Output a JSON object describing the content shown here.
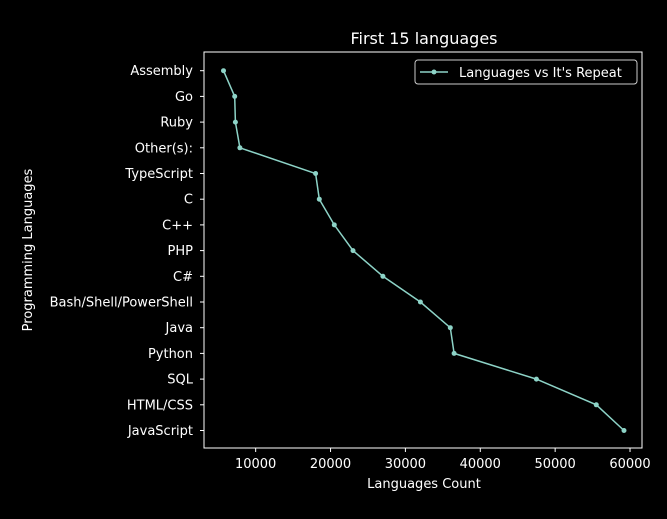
{
  "chart_data": {
    "type": "line",
    "title": "First 15 languages",
    "xlabel": "Languages Count",
    "ylabel": "Programming Languages",
    "categories": [
      "JavaScript",
      "HTML/CSS",
      "SQL",
      "Python",
      "Java",
      "Bash/Shell/PowerShell",
      "C#",
      "PHP",
      "C++",
      "C",
      "TypeScript",
      "Other(s):",
      "Ruby",
      "Go",
      "Assembly"
    ],
    "series": [
      {
        "name": "Languages vs It's Repeat",
        "color": "#8dd3c7",
        "values": [
          59200,
          55500,
          47500,
          36500,
          36000,
          32000,
          27000,
          23000,
          20500,
          18500,
          18000,
          7900,
          7300,
          7200,
          5700
        ]
      }
    ],
    "xlim": [
      3100,
      61600
    ],
    "xticks": [
      10000,
      20000,
      30000,
      40000,
      50000,
      60000
    ],
    "xtick_labels": [
      "10000",
      "20000",
      "30000",
      "40000",
      "50000",
      "60000"
    ],
    "legend": "top-right",
    "grid": false,
    "background": "#000000",
    "foreground": "#ffffff"
  }
}
